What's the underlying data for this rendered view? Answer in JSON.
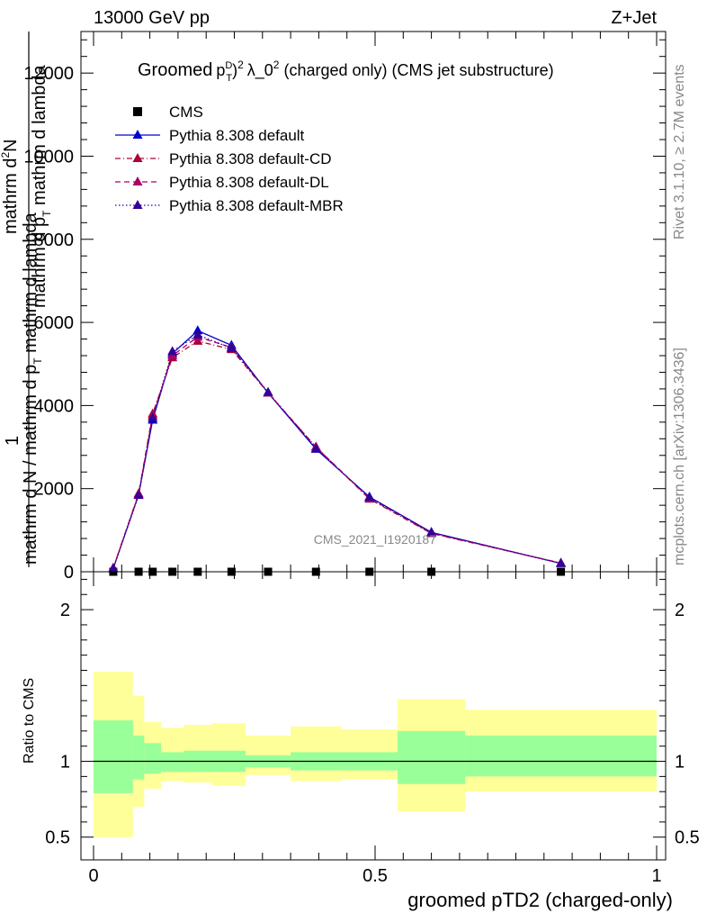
{
  "header": {
    "energy": "13000 GeV pp",
    "process": "Z+Jet"
  },
  "plot_title": {
    "prefix": "Groomed",
    "p": "p",
    "sup_d": "D",
    "sub_t": "T",
    "sq": "2",
    "lam": "λ_0",
    "lam_sup": "2",
    "suffix": " (charged only) (CMS jet substructure)"
  },
  "side_labels": {
    "rivet": "Rivet 3.1.10, ≥ 2.7M events",
    "mcplots": "mcplots.cern.ch [arXiv:1306.3436]"
  },
  "ylabel": {
    "one": "1",
    "num": "mathrm d",
    "num_sup": "2",
    "num_n": "N",
    "den_a": "mathrm d p",
    "den_t": "T",
    "den_b": " mathrm d lambda",
    "bottom": "mathrm d N / mathrm d p",
    "bottom_t": "T",
    "bottom_b": " mathrm d lambda"
  },
  "watermark": "CMS_2021_I1920187",
  "colors": {
    "default": "#0000cc",
    "cd": "#aa0033",
    "dl": "#aa0066",
    "mbr": "#330099",
    "green": "#99ff99",
    "yellow": "#ffff99"
  },
  "chart_data": [
    {
      "type": "line",
      "ylim": [
        0,
        13000
      ],
      "xlim": [
        -0.02,
        1.02
      ],
      "yticks": [
        {
          "v": 0,
          "l": "0"
        },
        {
          "v": 2000,
          "l": "2000"
        },
        {
          "v": 4000,
          "l": "4000"
        },
        {
          "v": 6000,
          "l": "6000"
        },
        {
          "v": 8000,
          "l": "8000"
        },
        {
          "v": 10000,
          "l": "10000"
        },
        {
          "v": 12000,
          "l": "12000"
        }
      ],
      "legend": [
        "CMS",
        "Pythia 8.308 default",
        "Pythia 8.308 default-CD",
        "Pythia 8.308 default-DL",
        "Pythia 8.308 default-MBR"
      ],
      "x": [
        0.035,
        0.08,
        0.105,
        0.14,
        0.185,
        0.245,
        0.31,
        0.395,
        0.49,
        0.6,
        0.83
      ],
      "series": [
        {
          "name": "CMS",
          "style": "marker",
          "values": [
            0,
            0,
            0,
            0,
            0,
            0,
            0,
            0,
            0,
            0,
            0
          ]
        },
        {
          "name": "Pythia 8.308 default",
          "style": "solid",
          "color": "#0000cc",
          "values": [
            80,
            1850,
            3650,
            5250,
            5800,
            5450,
            4300,
            2950,
            1800,
            950,
            200
          ]
        },
        {
          "name": "Pythia 8.308 default-CD",
          "style": "dashdot",
          "color": "#aa0033",
          "values": [
            90,
            1880,
            3800,
            5150,
            5550,
            5350,
            4300,
            3000,
            1750,
            920,
            210
          ]
        },
        {
          "name": "Pythia 8.308 default-DL",
          "style": "dash",
          "color": "#aa0066",
          "values": [
            85,
            1860,
            3750,
            5200,
            5650,
            5400,
            4300,
            3000,
            1770,
            930,
            205
          ]
        },
        {
          "name": "Pythia 8.308 default-MBR",
          "style": "dot",
          "color": "#330099",
          "values": [
            75,
            1840,
            3700,
            5300,
            5700,
            5380,
            4320,
            2960,
            1790,
            940,
            200
          ]
        }
      ]
    },
    {
      "type": "area",
      "ylabel": "Ratio to CMS",
      "xlabel": "groomed pTD2 (charged-only)",
      "ylim": [
        0.35,
        2.25
      ],
      "xticks": [
        {
          "v": 0,
          "l": "0"
        },
        {
          "v": 0.5,
          "l": "0.5"
        },
        {
          "v": 1,
          "l": "1"
        }
      ],
      "yticks": [
        {
          "v": 0.5,
          "l": "0.5"
        },
        {
          "v": 1,
          "l": "1"
        },
        {
          "v": 2,
          "l": "2"
        }
      ],
      "bins": [
        {
          "lo": 0.0,
          "hi": 0.07,
          "y_lo": 0.5,
          "y_hi": 1.59,
          "g_lo": 0.79,
          "g_hi": 1.27
        },
        {
          "lo": 0.07,
          "hi": 0.09,
          "y_lo": 0.7,
          "y_hi": 1.43,
          "g_lo": 0.88,
          "g_hi": 1.17
        },
        {
          "lo": 0.09,
          "hi": 0.12,
          "y_lo": 0.82,
          "y_hi": 1.26,
          "g_lo": 0.92,
          "g_hi": 1.12
        },
        {
          "lo": 0.12,
          "hi": 0.16,
          "y_lo": 0.87,
          "y_hi": 1.22,
          "g_lo": 0.93,
          "g_hi": 1.06
        },
        {
          "lo": 0.16,
          "hi": 0.21,
          "y_lo": 0.86,
          "y_hi": 1.24,
          "g_lo": 0.93,
          "g_hi": 1.07
        },
        {
          "lo": 0.21,
          "hi": 0.27,
          "y_lo": 0.84,
          "y_hi": 1.25,
          "g_lo": 0.93,
          "g_hi": 1.07
        },
        {
          "lo": 0.27,
          "hi": 0.35,
          "y_lo": 0.91,
          "y_hi": 1.17,
          "g_lo": 0.96,
          "g_hi": 1.04
        },
        {
          "lo": 0.35,
          "hi": 0.44,
          "y_lo": 0.87,
          "y_hi": 1.23,
          "g_lo": 0.94,
          "g_hi": 1.06
        },
        {
          "lo": 0.44,
          "hi": 0.54,
          "y_lo": 0.88,
          "y_hi": 1.21,
          "g_lo": 0.94,
          "g_hi": 1.06
        },
        {
          "lo": 0.54,
          "hi": 0.66,
          "y_lo": 0.67,
          "y_hi": 1.41,
          "g_lo": 0.85,
          "g_hi": 1.2
        },
        {
          "lo": 0.66,
          "hi": 1.0,
          "y_lo": 0.8,
          "y_hi": 1.34,
          "g_lo": 0.9,
          "g_hi": 1.17
        }
      ],
      "ratio_line": 1
    }
  ]
}
